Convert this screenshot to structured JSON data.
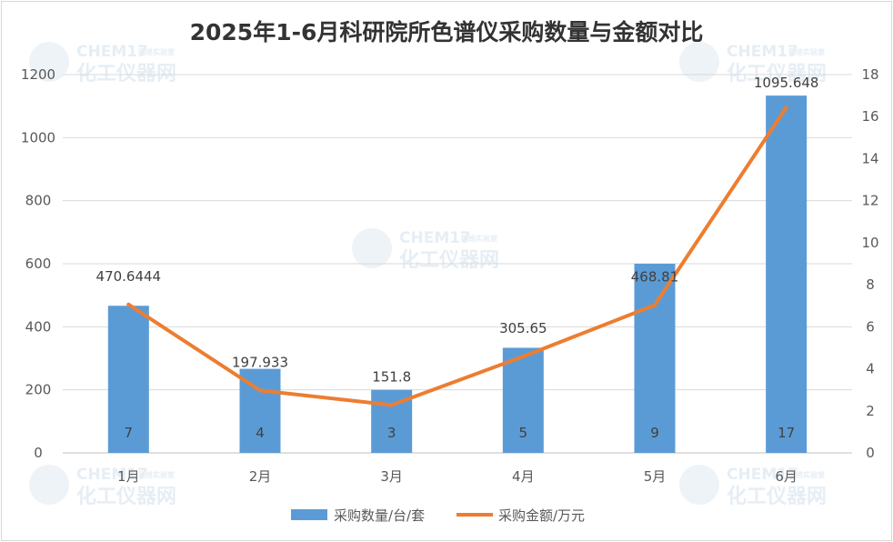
{
  "chart_data": {
    "type": "bar+line",
    "title": "2025年1-6月科研院所色谱仪采购数量与金额对比",
    "categories": [
      "1月",
      "2月",
      "3月",
      "4月",
      "5月",
      "6月"
    ],
    "series": [
      {
        "name": "采购数量/台/套",
        "type": "bar",
        "axis": "right",
        "values": [
          7,
          4,
          3,
          5,
          9,
          17
        ],
        "labels": [
          "7",
          "4",
          "3",
          "5",
          "9",
          "17"
        ],
        "color": "#5b9bd5"
      },
      {
        "name": "采购金额/万元",
        "type": "line",
        "axis": "left",
        "values": [
          470.6444,
          197.933,
          151.8,
          305.65,
          468.81,
          1095.648
        ],
        "labels": [
          "470.6444",
          "197.933",
          "151.8",
          "305.65",
          "468.81",
          "1095.648"
        ],
        "color": "#ed7d31"
      }
    ],
    "left_axis": {
      "ticks": [
        "0",
        "200",
        "400",
        "600",
        "800",
        "1000",
        "1200"
      ],
      "ylim": [
        0,
        1200
      ]
    },
    "right_axis": {
      "ticks": [
        "0",
        "2",
        "4",
        "6",
        "8",
        "10",
        "12",
        "14",
        "16",
        "18"
      ],
      "ylim": [
        0,
        18
      ]
    },
    "grid": true,
    "legend": "bottom"
  },
  "watermark": {
    "brand": "CHEM17",
    "brand_sub": "网络实验室",
    "name": "化工仪器网"
  }
}
